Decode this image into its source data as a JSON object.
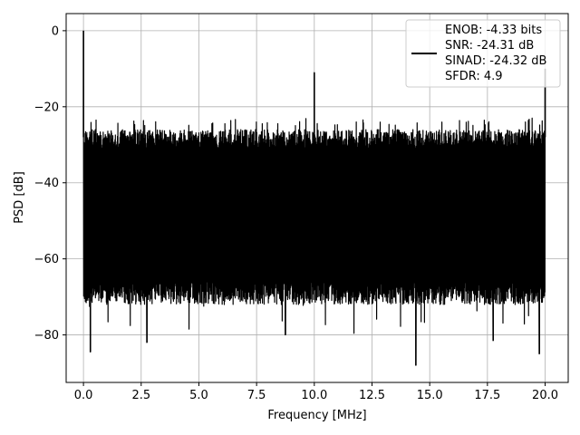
{
  "chart_data": {
    "type": "line",
    "xlabel": "Frequency [MHz]",
    "ylabel": "PSD [dB]",
    "xlim": [
      -0.75,
      21.0
    ],
    "ylim": [
      -92.5,
      4.5
    ],
    "x_ticks": [
      0.0,
      2.5,
      5.0,
      7.5,
      10.0,
      12.5,
      15.0,
      17.5,
      20.0
    ],
    "x_tick_labels": [
      "0.0",
      "2.5",
      "5.0",
      "7.5",
      "10.0",
      "12.5",
      "15.0",
      "17.5",
      "20.0"
    ],
    "y_ticks": [
      0,
      -20,
      -40,
      -60,
      -80
    ],
    "y_tick_labels": [
      "0",
      "−20",
      "−40",
      "−60",
      "−80"
    ],
    "grid": true,
    "legend_position": "top-right",
    "series": [
      {
        "name": "ENOB: -4.33 bits\nSNR: -24.31 dB\nSINAD: -24.32 dB\nSFDR: 4.9",
        "legend_lines": [
          "ENOB: -4.33 bits",
          "SNR: -24.31 dB",
          "SINAD: -24.32 dB",
          "SFDR: 4.9"
        ],
        "color": "#000000",
        "noise_floor_upper_db": -24,
        "noise_floor_lower_db": -66,
        "peaks": [
          {
            "x": 0.0,
            "y": 0.0
          },
          {
            "x": 10.0,
            "y": -11.0
          },
          {
            "x": 20.0,
            "y": -10.0
          }
        ],
        "dips": [
          {
            "x": 0.3,
            "y": -84.5
          },
          {
            "x": 2.75,
            "y": -82.0
          },
          {
            "x": 8.75,
            "y": -80.0
          },
          {
            "x": 14.4,
            "y": -88.0
          },
          {
            "x": 17.75,
            "y": -81.5
          },
          {
            "x": 19.75,
            "y": -85.0
          }
        ]
      }
    ]
  }
}
